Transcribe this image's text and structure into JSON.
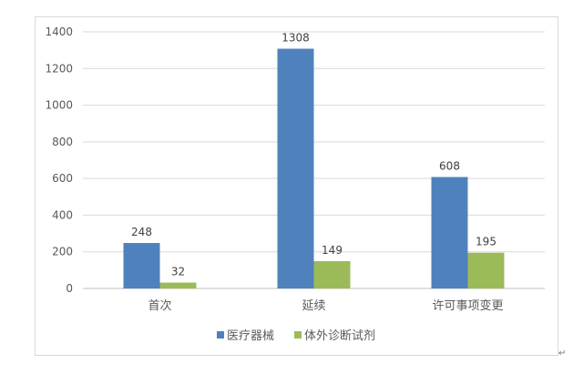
{
  "chart_data": {
    "type": "bar",
    "categories": [
      "首次",
      "延续",
      "许可事项变更"
    ],
    "series": [
      {
        "name": "医疗器械",
        "values": [
          248,
          1308,
          608
        ],
        "color": "#4F81BD"
      },
      {
        "name": "体外诊断试剂",
        "values": [
          32,
          149,
          195
        ],
        "color": "#9BBB59"
      }
    ],
    "ylim": [
      0,
      1400
    ],
    "yticks": [
      0,
      200,
      400,
      600,
      800,
      1000,
      1200,
      1400
    ],
    "grid": true,
    "legend": "bottom",
    "title": "",
    "xlabel": "",
    "ylabel": ""
  },
  "paragraph_mark": "↵"
}
